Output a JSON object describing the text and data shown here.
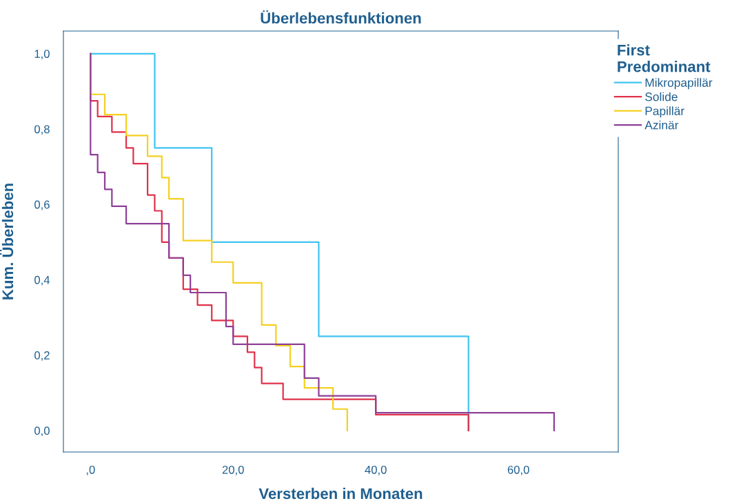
{
  "chart_data": {
    "type": "step",
    "title": "Überlebensfunktionen",
    "xlabel": "Versterben in Monaten",
    "ylabel": "Kum. Überleben",
    "legend_title": "First\nPredominant",
    "legend": "right",
    "grid": false,
    "xlim": [
      -3.8,
      74
    ],
    "ylim": [
      -0.057,
      1.06
    ],
    "xticks": [
      {
        "value": 0,
        "label": ",0"
      },
      {
        "value": 20,
        "label": "20,0"
      },
      {
        "value": 40,
        "label": "40,0"
      },
      {
        "value": 60,
        "label": "60,0"
      }
    ],
    "yticks": [
      {
        "value": 0,
        "label": "0,0"
      },
      {
        "value": 0.2,
        "label": "0,2"
      },
      {
        "value": 0.4,
        "label": "0,4"
      },
      {
        "value": 0.6,
        "label": "0,6"
      },
      {
        "value": 0.8,
        "label": "0,8"
      },
      {
        "value": 1,
        "label": "1,0"
      }
    ],
    "series": [
      {
        "name": "Mikropapillär",
        "color": "#40c4f0",
        "x": [
          0,
          9,
          17,
          32,
          53
        ],
        "values": [
          1,
          0.75,
          0.5,
          0.25,
          0
        ]
      },
      {
        "name": "Solide",
        "color": "#e0314a",
        "x": [
          0,
          0,
          1,
          3,
          5,
          6,
          8,
          9,
          10,
          11,
          13,
          15,
          17,
          20,
          22,
          23,
          24,
          27,
          40,
          53
        ],
        "values": [
          1,
          0.875,
          0.833,
          0.792,
          0.75,
          0.708,
          0.625,
          0.583,
          0.5,
          0.458,
          0.375,
          0.333,
          0.292,
          0.25,
          0.208,
          0.167,
          0.125,
          0.083,
          0.042,
          0
        ]
      },
      {
        "name": "Papillär",
        "color": "#f5d020",
        "x": [
          0,
          0,
          2,
          5,
          8,
          10,
          11,
          13,
          17,
          20,
          24,
          26,
          28,
          30,
          34,
          36
        ],
        "values": [
          1,
          0.892,
          0.838,
          0.783,
          0.728,
          0.671,
          0.615,
          0.504,
          0.447,
          0.392,
          0.28,
          0.225,
          0.17,
          0.113,
          0.057,
          0
        ]
      },
      {
        "name": "Azinär",
        "color": "#8e3f96",
        "x": [
          0,
          0,
          1,
          2,
          3,
          5,
          11,
          13,
          14,
          19,
          20,
          30,
          32,
          40,
          65
        ],
        "values": [
          1,
          0.732,
          0.685,
          0.64,
          0.595,
          0.549,
          0.458,
          0.412,
          0.366,
          0.276,
          0.229,
          0.139,
          0.092,
          0.047,
          0
        ]
      }
    ]
  }
}
